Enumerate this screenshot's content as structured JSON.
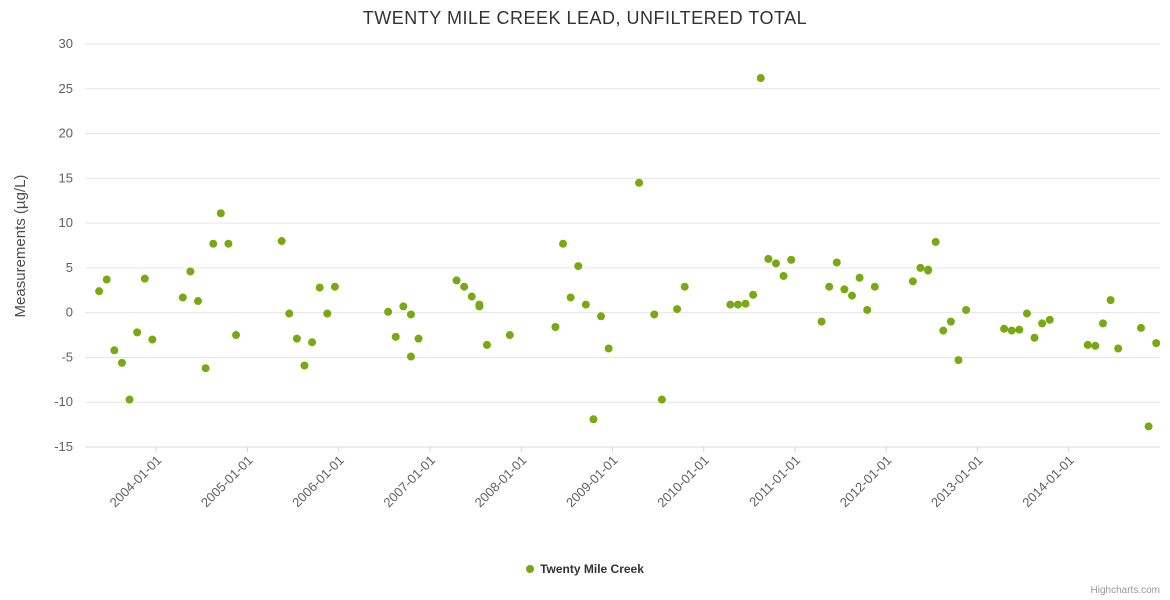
{
  "page": {
    "credits_label": "Highcharts.com"
  },
  "chart_data": {
    "type": "scatter",
    "title": "TWENTY MILE CREEK LEAD, UNFILTERED TOTAL",
    "xlabel": "",
    "ylabel": "Measurements (µg/L)",
    "ylim": [
      -15,
      30
    ],
    "ytick_interval": 5,
    "yticks": [
      30,
      25,
      20,
      15,
      10,
      5,
      0,
      -5,
      -10,
      -15
    ],
    "xtick_labels": [
      "2004-01-01",
      "2005-01-01",
      "2006-01-01",
      "2007-01-01",
      "2008-01-01",
      "2009-01-01",
      "2010-01-01",
      "2011-01-01",
      "2012-01-01",
      "2013-01-01",
      "2014-01-01"
    ],
    "xlim_years": [
      2003.22,
      2015.0
    ],
    "grid": "horizontal-only",
    "legend": {
      "position": "bottom",
      "label": "Twenty Mile Creek"
    },
    "colors": {
      "point": "#77aa11",
      "grid": "#e6e6e6",
      "axis_line": "#d8d8d8",
      "tick_text": "#606060",
      "title_text": "#333333",
      "axis_title_text": "#4d4d4d",
      "credits_text": "#999999"
    },
    "series": [
      {
        "name": "Twenty Mile Creek",
        "marker": "circle",
        "marker_radius": 4,
        "points": [
          [
            "2003-05",
            2.4
          ],
          [
            "2003-06",
            3.7
          ],
          [
            "2003-07",
            -4.2
          ],
          [
            "2003-08",
            -5.6
          ],
          [
            "2003-09",
            -9.7
          ],
          [
            "2003-10",
            -2.2
          ],
          [
            "2003-11",
            3.8
          ],
          [
            "2003-12",
            -3.0
          ],
          [
            "2004-04",
            1.7
          ],
          [
            "2004-05",
            4.6
          ],
          [
            "2004-06",
            1.3
          ],
          [
            "2004-07",
            -6.2
          ],
          [
            "2004-08",
            7.7
          ],
          [
            "2004-09",
            11.1
          ],
          [
            "2004-10",
            7.7
          ],
          [
            "2004-11",
            -2.5
          ],
          [
            "2005-05",
            8.0
          ],
          [
            "2005-06",
            -0.1
          ],
          [
            "2005-07",
            -2.9
          ],
          [
            "2005-08",
            -5.9
          ],
          [
            "2005-09",
            -3.3
          ],
          [
            "2005-10",
            2.8
          ],
          [
            "2005-11",
            -0.1
          ],
          [
            "2005-12",
            2.9
          ],
          [
            "2006-07",
            0.1
          ],
          [
            "2006-08",
            -2.7
          ],
          [
            "2006-09",
            0.7
          ],
          [
            "2006-10",
            -0.2
          ],
          [
            "2006-10",
            -4.9
          ],
          [
            "2006-11",
            -2.9
          ],
          [
            "2007-04",
            3.6
          ],
          [
            "2007-05",
            2.9
          ],
          [
            "2007-06",
            1.8
          ],
          [
            "2007-07",
            0.7
          ],
          [
            "2007-07",
            0.9
          ],
          [
            "2007-08",
            -3.6
          ],
          [
            "2007-11",
            -2.5
          ],
          [
            "2008-05",
            -1.6
          ],
          [
            "2008-06",
            7.7
          ],
          [
            "2008-07",
            1.7
          ],
          [
            "2008-08",
            5.2
          ],
          [
            "2008-09",
            0.9
          ],
          [
            "2008-10",
            -11.9
          ],
          [
            "2008-11",
            -0.4
          ],
          [
            "2008-12",
            -4.0
          ],
          [
            "2009-04",
            14.5
          ],
          [
            "2009-06",
            -0.2
          ],
          [
            "2009-07",
            -9.7
          ],
          [
            "2009-09",
            0.4
          ],
          [
            "2009-10",
            2.9
          ],
          [
            "2010-04",
            0.9
          ],
          [
            "2010-05",
            0.9
          ],
          [
            "2010-06",
            1.0
          ],
          [
            "2010-07",
            2.0
          ],
          [
            "2010-08",
            26.2
          ],
          [
            "2010-09",
            6.0
          ],
          [
            "2010-10",
            5.5
          ],
          [
            "2010-11",
            4.1
          ],
          [
            "2010-12",
            5.9
          ],
          [
            "2011-04",
            -1.0
          ],
          [
            "2011-05",
            2.9
          ],
          [
            "2011-06",
            5.6
          ],
          [
            "2011-07",
            2.6
          ],
          [
            "2011-08",
            1.9
          ],
          [
            "2011-09",
            3.9
          ],
          [
            "2011-10",
            0.3
          ],
          [
            "2011-11",
            2.9
          ],
          [
            "2012-04",
            3.5
          ],
          [
            "2012-05",
            5.0
          ],
          [
            "2012-06",
            4.7
          ],
          [
            "2012-06",
            4.8
          ],
          [
            "2012-07",
            7.9
          ],
          [
            "2012-08",
            -2.0
          ],
          [
            "2012-09",
            -1.0
          ],
          [
            "2012-10",
            -5.3
          ],
          [
            "2012-11",
            0.3
          ],
          [
            "2013-04",
            -1.8
          ],
          [
            "2013-05",
            -2.0
          ],
          [
            "2013-06",
            -1.9
          ],
          [
            "2013-07",
            -0.1
          ],
          [
            "2013-08",
            -2.8
          ],
          [
            "2013-09",
            -1.2
          ],
          [
            "2013-10",
            -0.8
          ],
          [
            "2014-03",
            -3.6
          ],
          [
            "2014-04",
            -3.7
          ],
          [
            "2014-05",
            -1.2
          ],
          [
            "2014-06",
            1.4
          ],
          [
            "2014-07",
            -4.0
          ],
          [
            "2014-10",
            -1.7
          ],
          [
            "2014-11",
            -12.7
          ],
          [
            "2014-12",
            -3.4
          ]
        ]
      }
    ]
  }
}
